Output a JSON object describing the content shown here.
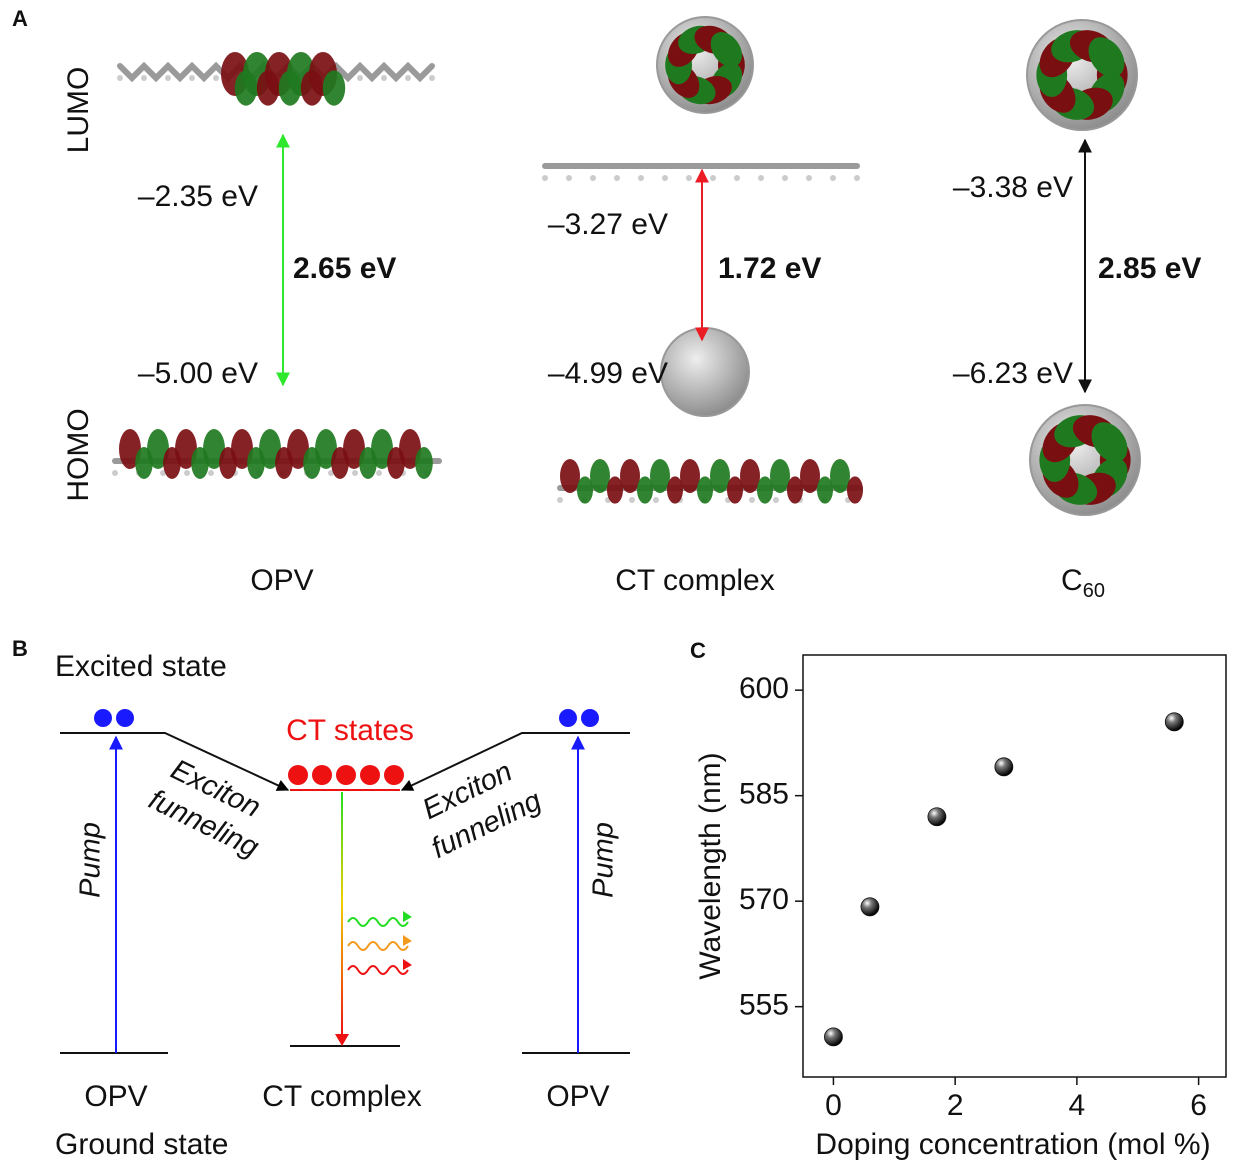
{
  "panel_a": {
    "label": "A",
    "lumo": "LUMO",
    "homo": "HOMO",
    "columns": [
      {
        "name": "OPV",
        "lumo_energy": "–2.35 eV",
        "homo_energy": "–5.00 eV",
        "gap": "2.65 eV",
        "arrow_color": "#2ee82e"
      },
      {
        "name": "CT complex",
        "lumo_energy": "–3.27 eV",
        "homo_energy": "–4.99 eV",
        "gap": "1.72 eV",
        "arrow_color": "#ec1c24"
      },
      {
        "name": "C",
        "name_sub": "60",
        "lumo_energy": "–3.38 eV",
        "homo_energy": "–6.23 eV",
        "gap": "2.85 eV",
        "arrow_color": "#111111"
      }
    ]
  },
  "panel_b": {
    "label": "B",
    "excited_state": "Excited state",
    "ct_states": "CT states",
    "funnel_left": [
      "Exciton",
      "funneling"
    ],
    "funnel_right": [
      "Exciton",
      "funneling"
    ],
    "pump_left": "Pump",
    "pump_right": "Pump",
    "bottom_labels": [
      "OPV",
      "CT complex",
      "OPV"
    ],
    "ground_state": "Ground state"
  },
  "chart_data": {
    "type": "scatter",
    "panel_label": "C",
    "xlabel": "Doping concentration (mol %)",
    "ylabel": "Wavelength (nm)",
    "x": [
      0,
      0.6,
      1.7,
      2.8,
      5.6
    ],
    "values": [
      550.7,
      569.2,
      582.0,
      589.1,
      595.5
    ],
    "color": "#111111",
    "xlim": [
      -0.5,
      6.45
    ],
    "ylim": [
      545,
      605
    ],
    "xticks": [
      0,
      2,
      4,
      6
    ],
    "yticks": [
      555,
      570,
      585,
      600
    ]
  }
}
